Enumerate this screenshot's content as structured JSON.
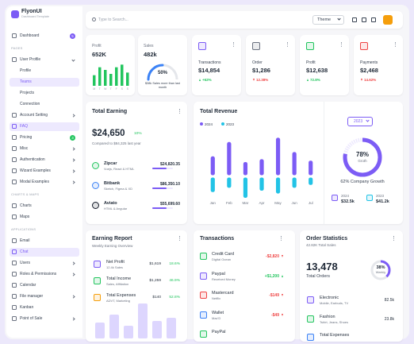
{
  "brand": {
    "name": "FlyonUI",
    "tagline": "Dashboard Template"
  },
  "search": "Type to Search...",
  "theme": "Theme",
  "sidebar": {
    "dashboard": {
      "label": "Dashboard",
      "badge": 5,
      "badge_color": "#7c5cf5"
    },
    "sections": [
      {
        "title": "PAGES",
        "items": [
          {
            "label": "User Profile",
            "children": [
              {
                "label": "Profile"
              },
              {
                "label": "Teams",
                "active": true
              },
              {
                "label": "Projects"
              },
              {
                "label": "Connection"
              }
            ]
          },
          {
            "label": "Account Setting",
            "arrow": true
          },
          {
            "label": "FAQ",
            "active": true
          },
          {
            "label": "Pricing",
            "badge": 3,
            "badge_color": "#22c55e"
          },
          {
            "label": "Misc",
            "arrow": true
          },
          {
            "label": "Authentication",
            "arrow": true
          },
          {
            "label": "Wizard Examples",
            "arrow": true
          },
          {
            "label": "Modal Examples",
            "arrow": true
          }
        ]
      },
      {
        "title": "CHARTS & MAPS",
        "items": [
          {
            "label": "Charts"
          },
          {
            "label": "Maps"
          }
        ]
      },
      {
        "title": "APPLICATIONS",
        "items": [
          {
            "label": "Email"
          },
          {
            "label": "Chat",
            "active": true
          },
          {
            "label": "Users",
            "arrow": true
          },
          {
            "label": "Roles & Permissions",
            "arrow": true
          },
          {
            "label": "Calendar"
          },
          {
            "label": "File manager",
            "arrow": true
          },
          {
            "label": "Kanban"
          },
          {
            "label": "Point of Sale",
            "arrow": true
          }
        ]
      }
    ]
  },
  "profit": {
    "title": "Profit",
    "value": "652K",
    "days": [
      "M",
      "T",
      "W",
      "T",
      "F",
      "S",
      "S"
    ],
    "bars": [
      8,
      14,
      12,
      9,
      14,
      16,
      10
    ],
    "ylim": [
      0,
      18
    ],
    "color": "#22c55e"
  },
  "sales": {
    "title": "Sales",
    "value": "482k",
    "gauge": {
      "value": 50,
      "label": "50%"
    },
    "note": "$38k Sales more than last month",
    "color": "#3b82f6"
  },
  "stats": [
    {
      "title": "Transactions",
      "value": "$14,854",
      "change": "+62%",
      "trend": "up",
      "color": "#7c5cf5"
    },
    {
      "title": "Order",
      "value": "$1,286",
      "change": "12.38%",
      "trend": "down",
      "color": "#6b7280"
    },
    {
      "title": "Profit",
      "value": "$12,638",
      "change": "72.8%",
      "trend": "up",
      "color": "#22c55e"
    },
    {
      "title": "Payments",
      "value": "$2,468",
      "change": "14.62%",
      "trend": "down",
      "color": "#ef4444"
    }
  ],
  "total_earning": {
    "title": "Total Earning",
    "value": "$24,650",
    "change": "10%",
    "compare": "Compared to $84,325 last year",
    "items": [
      {
        "name": "Zipcar",
        "sub": "Vuejs, React & HTML",
        "amount": "$24,820.35",
        "color": "#22c55e"
      },
      {
        "name": "Bitbank",
        "sub": "Sketch, Figma & XD",
        "amount": "$86,350.10",
        "color": "#3b82f6"
      },
      {
        "name": "Aviato",
        "sub": "HTML & Angular",
        "amount": "$55,699.60",
        "color": "#111827"
      }
    ]
  },
  "revenue": {
    "title": "Total Revenue",
    "categories": [
      "Jan",
      "Feb",
      "Mar",
      "Apr",
      "May",
      "Jun",
      "Jul"
    ],
    "ylim": [
      -20,
      30
    ],
    "series": [
      {
        "name": "2024",
        "color": "#7c5cf5",
        "values": [
          14,
          24,
          10,
          12,
          27,
          17,
          11
        ]
      },
      {
        "name": "2023",
        "color": "#22c3e6",
        "values": [
          -11,
          -8,
          -15,
          -10,
          -12,
          -8,
          -6
        ]
      }
    ],
    "year": "2023",
    "growth": {
      "value": 78,
      "label": "78%"
    },
    "growth_label": "Groth",
    "company_growth": "62% Company Growth",
    "years": [
      {
        "year": "2024",
        "value": "$32.5k",
        "color": "#7c5cf5"
      },
      {
        "year": "2023",
        "value": "$41.2k",
        "color": "#22c3e6"
      }
    ]
  },
  "earning_report": {
    "title": "Earning Report",
    "subtitle": "Weekly Earning Overview",
    "items": [
      {
        "name": "Net Profit",
        "sub": "12.4k Sales",
        "amount": "$1,619",
        "change": "18.6%",
        "color": "#7c5cf5"
      },
      {
        "name": "Total Income",
        "sub": "Sales, Affiliation",
        "amount": "$1,259",
        "change": "46.9%",
        "color": "#22c55e"
      },
      {
        "name": "Total Expenses",
        "sub": "ADVT, Marketing",
        "amount": "$140",
        "change": "52.8%",
        "color": "#f59e0b"
      }
    ],
    "bars": [
      20,
      30,
      16,
      44,
      22,
      26
    ],
    "ylim": [
      0,
      50
    ]
  },
  "transactions": {
    "title": "Transactions",
    "items": [
      {
        "name": "Credit Card",
        "sub": "Digital Ocean",
        "amount": "-$2,820",
        "color": "#22c55e"
      },
      {
        "name": "Paypal",
        "sub": "Received Money",
        "amount": "+$1,200",
        "color": "#7c5cf5"
      },
      {
        "name": "Mastercard",
        "sub": "Netflix",
        "amount": "-$149",
        "color": "#ef4444"
      },
      {
        "name": "Wallet",
        "sub": "Mac'D",
        "amount": "-$49",
        "color": "#3b82f6"
      },
      {
        "name": "PayPal",
        "color": "#22c55e"
      }
    ]
  },
  "order_stats": {
    "title": "Order Statistics",
    "subtitle": "42.82K Total Sales",
    "value": "13,478",
    "value_label": "Total Orders",
    "donut": {
      "value": 38,
      "label": "38%"
    },
    "donut_label": "Weekly",
    "items": [
      {
        "name": "Electronic",
        "sub": "Mobile, Earbuds, TV",
        "amount": "82.5k",
        "color": "#7c5cf5"
      },
      {
        "name": "Fashion",
        "sub": "Tshirt, Jeans, Shoes",
        "amount": "23.8k",
        "color": "#22c55e"
      },
      {
        "name": "Total Expenses",
        "color": "#3b82f6"
      }
    ]
  }
}
